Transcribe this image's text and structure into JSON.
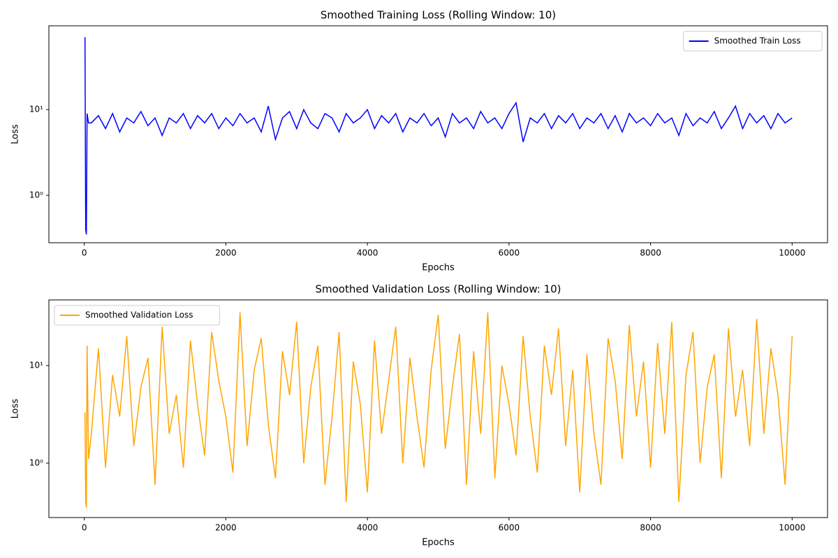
{
  "chart_data": [
    {
      "type": "line",
      "title": "Smoothed Training Loss (Rolling Window: 10)",
      "xlabel": "Epochs",
      "ylabel": "Loss",
      "log_y": true,
      "legend": "upper right",
      "xlim": [
        -500,
        10500
      ],
      "xticks": [
        0,
        2000,
        4000,
        6000,
        8000,
        10000
      ],
      "ylim": [
        0.28,
        95
      ],
      "yticks": [
        {
          "value": 1,
          "label": "10⁰"
        },
        {
          "value": 10,
          "label": "10¹"
        }
      ],
      "x": [
        10,
        20,
        30,
        40,
        60,
        100,
        200,
        300,
        400,
        500,
        600,
        700,
        800,
        900,
        1000,
        1100,
        1200,
        1300,
        1400,
        1500,
        1600,
        1700,
        1800,
        1900,
        2000,
        2100,
        2200,
        2300,
        2400,
        2500,
        2600,
        2700,
        2800,
        2900,
        3000,
        3100,
        3200,
        3300,
        3400,
        3500,
        3600,
        3700,
        3800,
        3900,
        4000,
        4100,
        4200,
        4300,
        4400,
        4500,
        4600,
        4700,
        4800,
        4900,
        5000,
        5100,
        5200,
        5300,
        5400,
        5500,
        5600,
        5700,
        5800,
        5900,
        6000,
        6100,
        6200,
        6300,
        6400,
        6500,
        6600,
        6700,
        6800,
        6900,
        7000,
        7100,
        7200,
        7300,
        7400,
        7500,
        7600,
        7700,
        7800,
        7900,
        8000,
        8100,
        8200,
        8300,
        8400,
        8500,
        8600,
        8700,
        8800,
        8900,
        9000,
        9100,
        9200,
        9300,
        9400,
        9500,
        9600,
        9700,
        9800,
        9900,
        10000
      ],
      "series": [
        {
          "name": "Smoothed Train Loss",
          "color": "#0000ff",
          "values": [
            70,
            0.4,
            0.35,
            9,
            7,
            7,
            8.5,
            6,
            9,
            5.5,
            8,
            7,
            9.5,
            6.5,
            8,
            5,
            8,
            7,
            9,
            6,
            8.5,
            7,
            9,
            6,
            8,
            6.5,
            9,
            7,
            8,
            5.5,
            11,
            4.5,
            8,
            9.5,
            6,
            10,
            7,
            6,
            9,
            8,
            5.5,
            9,
            7,
            8,
            10,
            6,
            8.5,
            7,
            9,
            5.5,
            8,
            7,
            9,
            6.5,
            8,
            4.8,
            9,
            7,
            8,
            6,
            9.5,
            7,
            8,
            6,
            9,
            12,
            4.2,
            8,
            7,
            9,
            6,
            8.5,
            7,
            9,
            6,
            8,
            7,
            9,
            6,
            8.5,
            5.5,
            9,
            7,
            8,
            6.5,
            9,
            7,
            8,
            5,
            9,
            6.5,
            8,
            7,
            9.5,
            6,
            8,
            11,
            6,
            9,
            7,
            8.5,
            6,
            9,
            7,
            8
          ]
        }
      ]
    },
    {
      "type": "line",
      "title": "Smoothed Validation Loss (Rolling Window: 10)",
      "xlabel": "Epochs",
      "ylabel": "Loss",
      "log_y": true,
      "legend": "upper left",
      "xlim": [
        -500,
        10500
      ],
      "xticks": [
        0,
        2000,
        4000,
        6000,
        8000,
        10000
      ],
      "ylim": [
        0.277,
        47
      ],
      "yticks": [
        {
          "value": 1,
          "label": "10⁰"
        },
        {
          "value": 10,
          "label": "10¹"
        }
      ],
      "x": [
        10,
        20,
        30,
        40,
        60,
        100,
        200,
        300,
        400,
        500,
        600,
        700,
        800,
        900,
        1000,
        1100,
        1200,
        1300,
        1400,
        1500,
        1600,
        1700,
        1800,
        1900,
        2000,
        2100,
        2200,
        2300,
        2400,
        2500,
        2600,
        2700,
        2800,
        2900,
        3000,
        3100,
        3200,
        3300,
        3400,
        3500,
        3600,
        3700,
        3800,
        3900,
        4000,
        4100,
        4200,
        4300,
        4400,
        4500,
        4600,
        4700,
        4800,
        4900,
        5000,
        5100,
        5200,
        5300,
        5400,
        5500,
        5600,
        5700,
        5800,
        5900,
        6000,
        6100,
        6200,
        6300,
        6400,
        6500,
        6600,
        6700,
        6800,
        6900,
        7000,
        7100,
        7200,
        7300,
        7400,
        7500,
        7600,
        7700,
        7800,
        7900,
        8000,
        8100,
        8200,
        8300,
        8400,
        8500,
        8600,
        8700,
        8800,
        8900,
        9000,
        9100,
        9200,
        9300,
        9400,
        9500,
        9600,
        9700,
        9800,
        9900,
        10000
      ],
      "series": [
        {
          "name": "Smoothed Validation Loss",
          "color": "#ffa500",
          "values": [
            3.3,
            0.4,
            0.35,
            16,
            1.1,
            2,
            15,
            0.9,
            8,
            3,
            20,
            1.5,
            6,
            12,
            0.6,
            25,
            2,
            5,
            0.9,
            18,
            4,
            1.2,
            22,
            7,
            3,
            0.8,
            35,
            1.5,
            9,
            19,
            2.5,
            0.7,
            14,
            5,
            28,
            1,
            6,
            16,
            0.6,
            3,
            22,
            0.4,
            11,
            4,
            0.5,
            18,
            2,
            7,
            25,
            1,
            12,
            3,
            0.9,
            9,
            33,
            1.4,
            6,
            21,
            0.6,
            14,
            2,
            35,
            0.7,
            10,
            4,
            1.2,
            20,
            3,
            0.8,
            16,
            5,
            24,
            1.5,
            9,
            0.5,
            13,
            2,
            0.6,
            19,
            7,
            1.1,
            26,
            3,
            11,
            0.9,
            17,
            2,
            28,
            0.4,
            8,
            22,
            1,
            6,
            13,
            0.7,
            24,
            3,
            9,
            1.5,
            30,
            2,
            15,
            5,
            0.6,
            20
          ]
        }
      ]
    }
  ]
}
